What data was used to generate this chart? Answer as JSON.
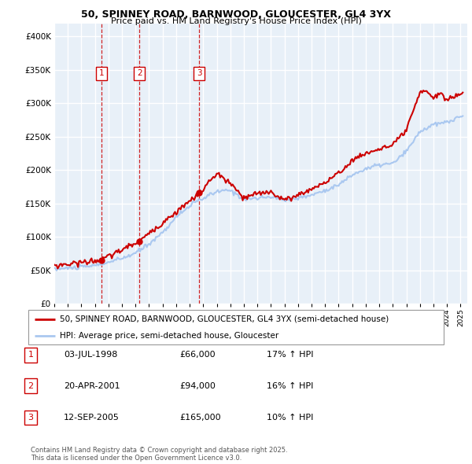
{
  "title": "50, SPINNEY ROAD, BARNWOOD, GLOUCESTER, GL4 3YX",
  "subtitle": "Price paid vs. HM Land Registry's House Price Index (HPI)",
  "legend_line1": "50, SPINNEY ROAD, BARNWOOD, GLOUCESTER, GL4 3YX (semi-detached house)",
  "legend_line2": "HPI: Average price, semi-detached house, Gloucester",
  "footer": "Contains HM Land Registry data © Crown copyright and database right 2025.\nThis data is licensed under the Open Government Licence v3.0.",
  "transactions": [
    {
      "num": 1,
      "date": "03-JUL-1998",
      "price": "£66,000",
      "hpi": "17% ↑ HPI",
      "year": 1998.5
    },
    {
      "num": 2,
      "date": "20-APR-2001",
      "price": "£94,000",
      "hpi": "16% ↑ HPI",
      "year": 2001.3
    },
    {
      "num": 3,
      "date": "12-SEP-2005",
      "price": "£165,000",
      "hpi": "10% ↑ HPI",
      "year": 2005.7
    }
  ],
  "sale_markers": [
    {
      "year": 1998.5,
      "price": 66000
    },
    {
      "year": 2001.3,
      "price": 94000
    },
    {
      "year": 2005.7,
      "price": 165000
    }
  ],
  "hpi_color": "#aac8f0",
  "price_color": "#cc0000",
  "vline_color": "#cc0000",
  "ylim": [
    0,
    420000
  ],
  "yticks": [
    0,
    50000,
    100000,
    150000,
    200000,
    250000,
    300000,
    350000,
    400000
  ],
  "background_color": "#ffffff",
  "grid_color": "#d0dde8",
  "chart_bg": "#e8f0f8"
}
